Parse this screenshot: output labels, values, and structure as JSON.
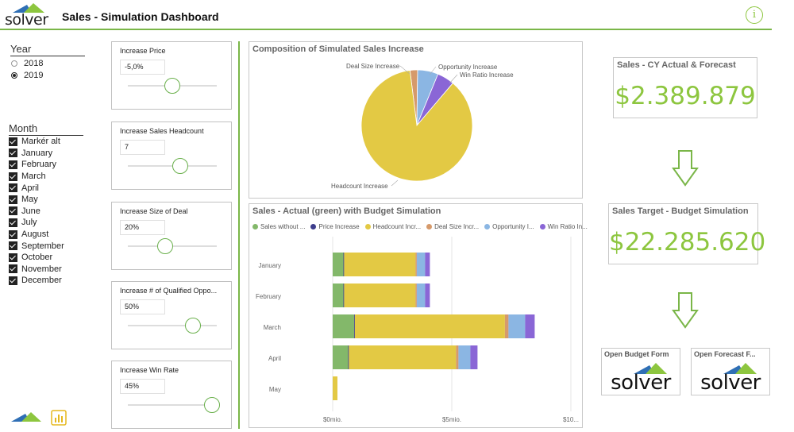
{
  "header": {
    "logo_text": "solver",
    "title": "Sales - Simulation Dashboard",
    "info_label": "i"
  },
  "filters": {
    "year": {
      "title": "Year",
      "options": [
        {
          "label": "2018",
          "selected": false
        },
        {
          "label": "2019",
          "selected": true
        }
      ]
    },
    "month": {
      "title": "Month",
      "options": [
        "Markér alt",
        "January",
        "February",
        "March",
        "April",
        "May",
        "June",
        "July",
        "August",
        "September",
        "October",
        "November",
        "December"
      ]
    }
  },
  "sliders": [
    {
      "label": "Increase Price",
      "value": "-5,0%",
      "level": 0.5
    },
    {
      "label": "Increase Sales Headcount",
      "value": "7",
      "level": 0.59
    },
    {
      "label": "Increase Size of Deal",
      "value": "20%",
      "level": 0.42
    },
    {
      "label": "Increase # of Qualified Oppo...",
      "value": "50%",
      "level": 0.73
    },
    {
      "label": "Increase Win Rate",
      "value": "45%",
      "level": 0.95
    }
  ],
  "colors": {
    "sales_without": "#83b86a",
    "price": "#3d3d8c",
    "headcount": "#e3c944",
    "deal_size": "#d69a6b",
    "opportunity": "#8bb6e3",
    "win_ratio": "#8a66d6",
    "accent_green": "#8dc63f"
  },
  "pie_panel": {
    "title": "Composition of Simulated Sales Increase"
  },
  "pie_chart": {
    "type": "pie",
    "labels": [
      "Deal Size Increase",
      "Opportunity Increase",
      "Win Ratio Increase",
      "Headcount Increase"
    ],
    "values": [
      2.2,
      6.0,
      5.0,
      86.8
    ]
  },
  "bar_panel": {
    "title": "Sales - Actual (green) with Budget Simulation",
    "legend": [
      "Sales without ...",
      "Price Increase",
      "Headcount Incr...",
      "Deal Size Incr...",
      "Opportunity I...",
      "Win Ratio In..."
    ]
  },
  "chart_data": {
    "type": "bar",
    "orientation": "horizontal",
    "stacked": true,
    "categories": [
      "January",
      "February",
      "March",
      "April",
      "May"
    ],
    "series": [
      {
        "name": "Sales without ...",
        "values": [
          0.45,
          0.45,
          0.9,
          0.65,
          0.0
        ]
      },
      {
        "name": "Price Increase",
        "values": [
          0.03,
          0.03,
          0.03,
          0.03,
          0.0
        ]
      },
      {
        "name": "Headcount Incr...",
        "values": [
          3.0,
          3.0,
          6.3,
          4.5,
          0.2
        ]
      },
      {
        "name": "Deal Size Incr...",
        "values": [
          0.05,
          0.05,
          0.15,
          0.1,
          0.0
        ]
      },
      {
        "name": "Opportunity I...",
        "values": [
          0.35,
          0.35,
          0.7,
          0.5,
          0.0
        ]
      },
      {
        "name": "Win Ratio In...",
        "values": [
          0.2,
          0.2,
          0.4,
          0.3,
          0.0
        ]
      }
    ],
    "xticks": [
      "$0mio.",
      "$5mio.",
      "$10..."
    ],
    "xlim": [
      0,
      10
    ]
  },
  "kpis": [
    {
      "title": "Sales - CY Actual & Forecast",
      "value": "$2.389.879"
    },
    {
      "title": "Sales Target - Budget Simulation",
      "value": "$22.285.620"
    }
  ],
  "actions": [
    {
      "title": "Open Budget Form",
      "logo_text": "solver"
    },
    {
      "title": "Open Forecast F...",
      "logo_text": "solver"
    }
  ]
}
